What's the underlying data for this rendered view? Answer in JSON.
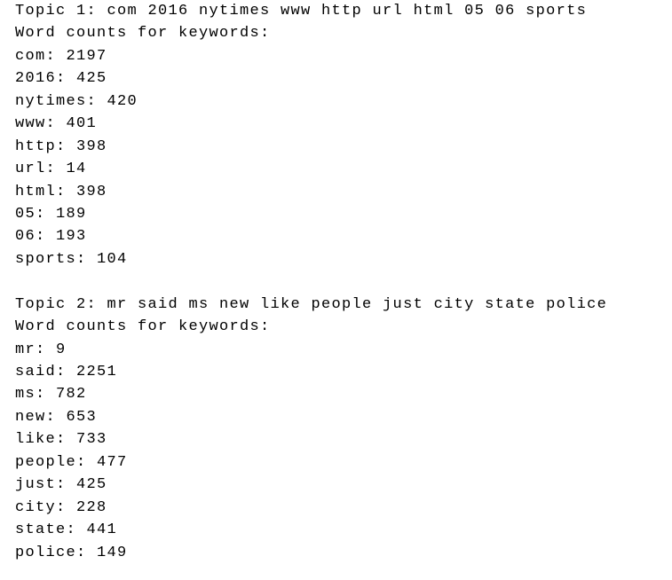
{
  "topics": [
    {
      "heading": "Topic 1: com 2016 nytimes www http url html 05 06 sports",
      "subheading": "Word counts for keywords:",
      "counts": [
        "com: 2197",
        "2016: 425",
        "nytimes: 420",
        "www: 401",
        "http: 398",
        "url: 14",
        "html: 398",
        "05: 189",
        "06: 193",
        "sports: 104"
      ]
    },
    {
      "heading": "Topic 2: mr said ms new like people just city state police",
      "subheading": "Word counts for keywords:",
      "counts": [
        "mr: 9",
        "said: 2251",
        "ms: 782",
        "new: 653",
        "like: 733",
        "people: 477",
        "just: 425",
        "city: 228",
        "state: 441",
        "police: 149"
      ]
    }
  ]
}
